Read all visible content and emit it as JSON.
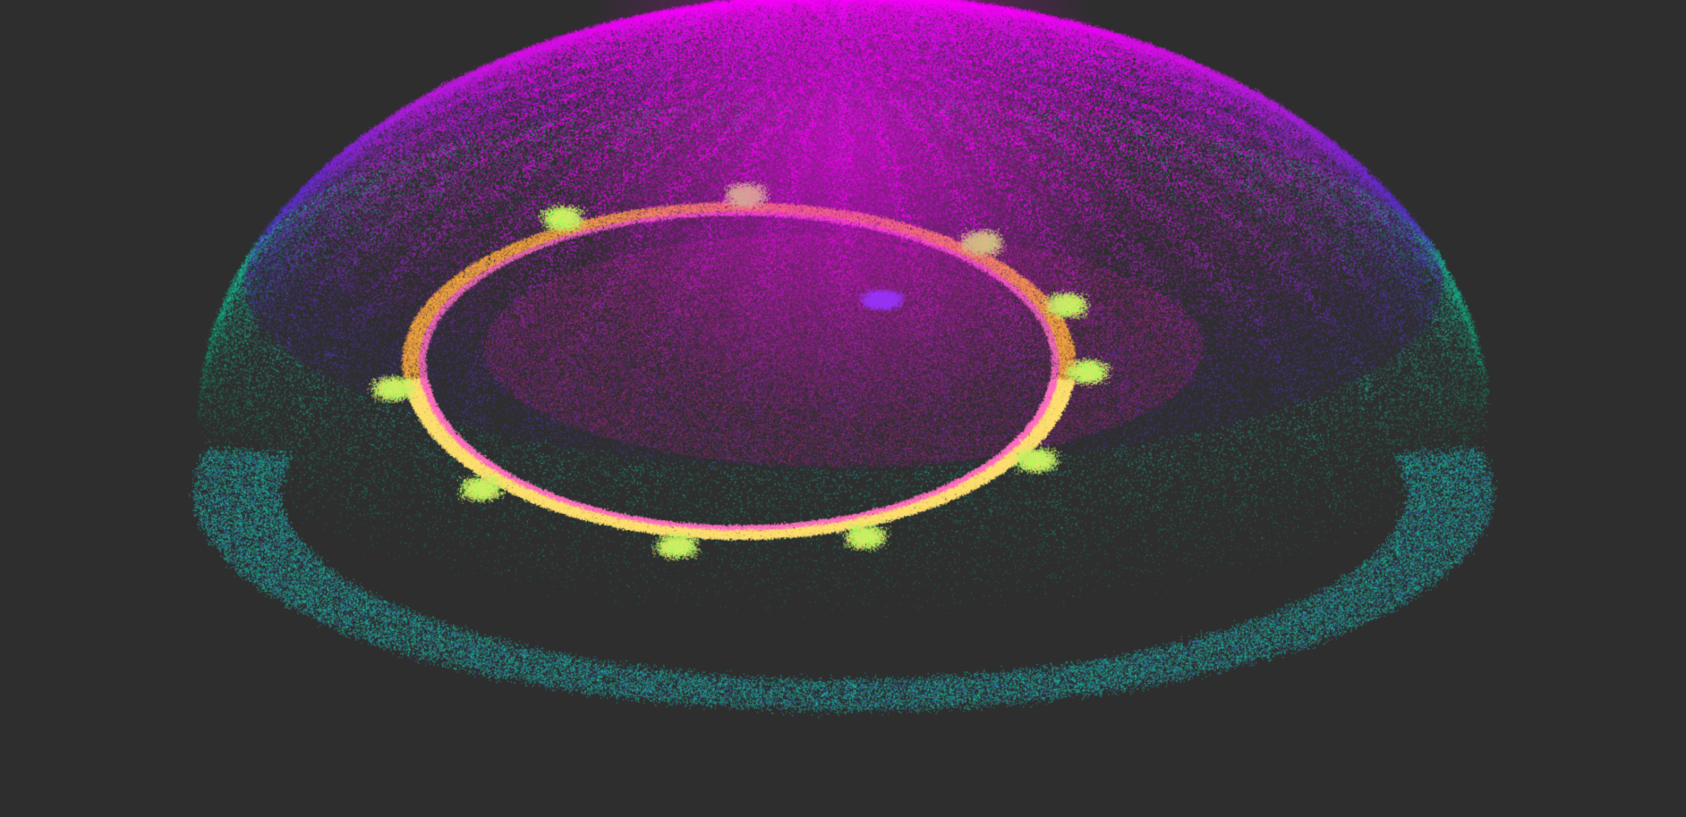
{
  "viewer": {
    "background_color": "#2e2e2e",
    "colormap": [
      "#00d084",
      "#1fd0b0",
      "#3a5ad0",
      "#6a30e0",
      "#c020e0",
      "#ff00ff"
    ],
    "structure_colors": {
      "ring_inner": "#ffb040",
      "ring_outer": "#ff70c0",
      "bays": "#a8ff60",
      "highlight": "#ffe070"
    }
  }
}
